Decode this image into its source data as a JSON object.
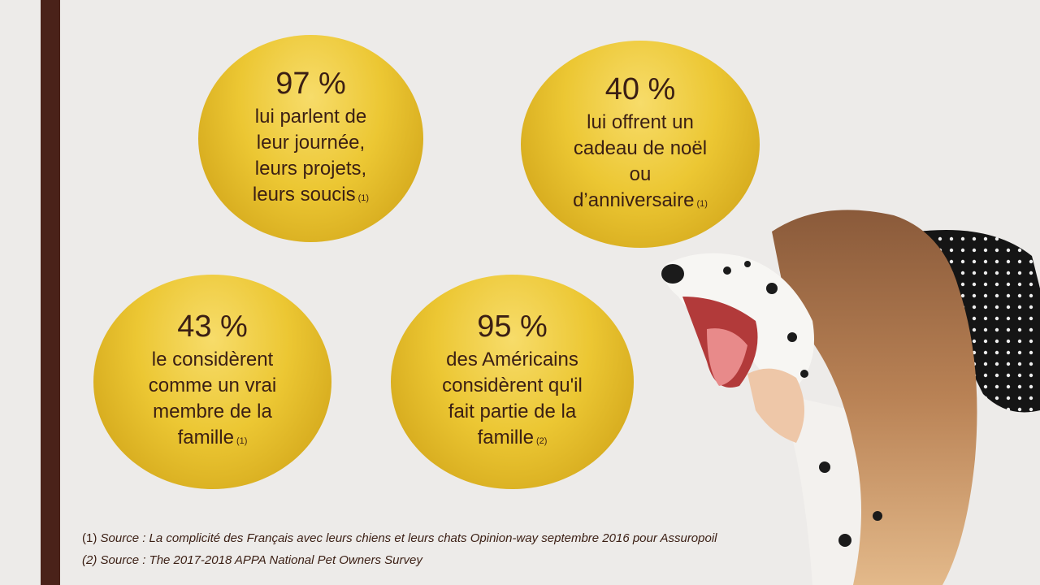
{
  "bubbles": [
    {
      "percent": "97 %",
      "lines": [
        "lui parlent de",
        "leur journée,",
        "leurs projets,",
        "leurs soucis"
      ],
      "ref": "(1)"
    },
    {
      "percent": "40 %",
      "lines": [
        "lui offrent un",
        "cadeau de noël",
        "ou",
        "d’anniversaire"
      ],
      "ref": "(1)"
    },
    {
      "percent": "43 %",
      "lines": [
        "le considèrent",
        "comme un vrai",
        "membre de la",
        "famille"
      ],
      "ref": "(1)"
    },
    {
      "percent": "95 %",
      "lines": [
        "des Américains",
        "considèrent qu'il",
        "fait partie de la",
        "famille"
      ],
      "ref": "(2)"
    }
  ],
  "sources": [
    {
      "num": "(1)",
      "text": "Source : La complicité des Français avec leurs chiens et leurs chats Opinion-way septembre 2016 pour Assuropoil"
    },
    {
      "num": "(2)",
      "text": "Source : The 2017-2018 APPA National Pet Owners Survey"
    }
  ],
  "colors": {
    "sidebar": "#4a2219",
    "bubble": "#ecc733",
    "text": "#3b1f14"
  }
}
